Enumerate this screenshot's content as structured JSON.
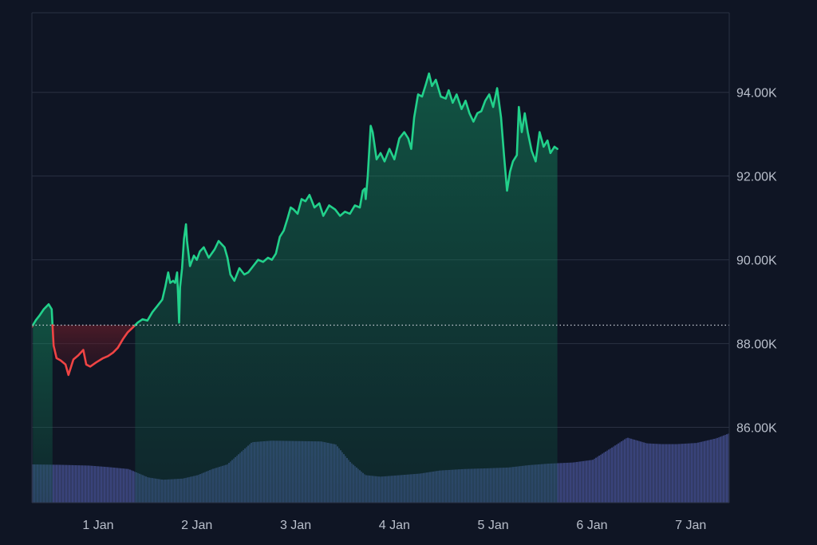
{
  "chart_data": {
    "type": "area",
    "baseline": 88440,
    "ylim": [
      84200,
      95900
    ],
    "y_ticks": [
      {
        "value": 94000,
        "label": "94.00K"
      },
      {
        "value": 92000,
        "label": "92.00K"
      },
      {
        "value": 90000,
        "label": "90.00K"
      },
      {
        "value": 88000,
        "label": "88.00K"
      },
      {
        "value": 86000,
        "label": "86.00K"
      }
    ],
    "x_ticks": [
      {
        "day": 1,
        "label": "1 Jan"
      },
      {
        "day": 2,
        "label": "2 Jan"
      },
      {
        "day": 3,
        "label": "3 Jan"
      },
      {
        "day": 4,
        "label": "4 Jan"
      },
      {
        "day": 5,
        "label": "5 Jan"
      },
      {
        "day": 6,
        "label": "6 Jan"
      },
      {
        "day": 7,
        "label": "7 Jan"
      }
    ],
    "xlim": [
      0.33,
      7.39
    ],
    "price_series": [
      [
        0.33,
        88400
      ],
      [
        0.37,
        88560
      ],
      [
        0.41,
        88680
      ],
      [
        0.45,
        88820
      ],
      [
        0.5,
        88940
      ],
      [
        0.53,
        88820
      ],
      [
        0.55,
        87950
      ],
      [
        0.58,
        87650
      ],
      [
        0.62,
        87600
      ],
      [
        0.67,
        87500
      ],
      [
        0.7,
        87250
      ],
      [
        0.75,
        87620
      ],
      [
        0.8,
        87720
      ],
      [
        0.85,
        87850
      ],
      [
        0.88,
        87500
      ],
      [
        0.92,
        87450
      ],
      [
        0.98,
        87550
      ],
      [
        1.05,
        87650
      ],
      [
        1.1,
        87700
      ],
      [
        1.15,
        87780
      ],
      [
        1.2,
        87900
      ],
      [
        1.25,
        88100
      ],
      [
        1.3,
        88270
      ],
      [
        1.35,
        88380
      ],
      [
        1.4,
        88500
      ],
      [
        1.45,
        88580
      ],
      [
        1.5,
        88550
      ],
      [
        1.55,
        88750
      ],
      [
        1.6,
        88900
      ],
      [
        1.65,
        89050
      ],
      [
        1.68,
        89350
      ],
      [
        1.71,
        89700
      ],
      [
        1.73,
        89450
      ],
      [
        1.76,
        89500
      ],
      [
        1.78,
        89450
      ],
      [
        1.8,
        89700
      ],
      [
        1.81,
        89150
      ],
      [
        1.82,
        88500
      ],
      [
        1.83,
        89350
      ],
      [
        1.85,
        89800
      ],
      [
        1.87,
        90500
      ],
      [
        1.89,
        90850
      ],
      [
        1.9,
        90450
      ],
      [
        1.93,
        89850
      ],
      [
        1.97,
        90100
      ],
      [
        2.0,
        90000
      ],
      [
        2.03,
        90200
      ],
      [
        2.07,
        90300
      ],
      [
        2.12,
        90050
      ],
      [
        2.18,
        90250
      ],
      [
        2.22,
        90450
      ],
      [
        2.28,
        90300
      ],
      [
        2.31,
        90050
      ],
      [
        2.34,
        89650
      ],
      [
        2.38,
        89500
      ],
      [
        2.43,
        89800
      ],
      [
        2.48,
        89650
      ],
      [
        2.52,
        89700
      ],
      [
        2.57,
        89850
      ],
      [
        2.62,
        90000
      ],
      [
        2.67,
        89950
      ],
      [
        2.72,
        90050
      ],
      [
        2.76,
        90000
      ],
      [
        2.8,
        90150
      ],
      [
        2.84,
        90550
      ],
      [
        2.88,
        90700
      ],
      [
        2.92,
        91000
      ],
      [
        2.95,
        91250
      ],
      [
        2.98,
        91200
      ],
      [
        3.02,
        91100
      ],
      [
        3.06,
        91450
      ],
      [
        3.1,
        91400
      ],
      [
        3.14,
        91550
      ],
      [
        3.19,
        91250
      ],
      [
        3.24,
        91350
      ],
      [
        3.28,
        91050
      ],
      [
        3.34,
        91300
      ],
      [
        3.4,
        91200
      ],
      [
        3.45,
        91050
      ],
      [
        3.5,
        91150
      ],
      [
        3.55,
        91100
      ],
      [
        3.6,
        91300
      ],
      [
        3.65,
        91250
      ],
      [
        3.68,
        91650
      ],
      [
        3.7,
        91700
      ],
      [
        3.71,
        91450
      ],
      [
        3.73,
        92000
      ],
      [
        3.76,
        93200
      ],
      [
        3.78,
        93050
      ],
      [
        3.82,
        92400
      ],
      [
        3.86,
        92550
      ],
      [
        3.9,
        92350
      ],
      [
        3.95,
        92650
      ],
      [
        4.0,
        92400
      ],
      [
        4.05,
        92900
      ],
      [
        4.1,
        93050
      ],
      [
        4.14,
        92900
      ],
      [
        4.17,
        92650
      ],
      [
        4.2,
        93400
      ],
      [
        4.24,
        93950
      ],
      [
        4.28,
        93900
      ],
      [
        4.32,
        94200
      ],
      [
        4.35,
        94450
      ],
      [
        4.38,
        94150
      ],
      [
        4.42,
        94300
      ],
      [
        4.47,
        93900
      ],
      [
        4.52,
        93850
      ],
      [
        4.55,
        94050
      ],
      [
        4.59,
        93750
      ],
      [
        4.63,
        93950
      ],
      [
        4.68,
        93600
      ],
      [
        4.72,
        93800
      ],
      [
        4.76,
        93500
      ],
      [
        4.8,
        93300
      ],
      [
        4.84,
        93500
      ],
      [
        4.88,
        93550
      ],
      [
        4.92,
        93800
      ],
      [
        4.96,
        93950
      ],
      [
        5.0,
        93650
      ],
      [
        5.04,
        94100
      ],
      [
        5.08,
        93400
      ],
      [
        5.11,
        92500
      ],
      [
        5.14,
        91650
      ],
      [
        5.17,
        92100
      ],
      [
        5.2,
        92350
      ],
      [
        5.24,
        92500
      ],
      [
        5.26,
        93650
      ],
      [
        5.29,
        93050
      ],
      [
        5.32,
        93500
      ],
      [
        5.35,
        93050
      ],
      [
        5.39,
        92600
      ],
      [
        5.43,
        92350
      ],
      [
        5.47,
        93050
      ],
      [
        5.51,
        92700
      ],
      [
        5.55,
        92850
      ],
      [
        5.58,
        92550
      ],
      [
        5.62,
        92700
      ],
      [
        5.65,
        92650
      ]
    ],
    "volume_series": [
      [
        0.33,
        1.0
      ],
      [
        0.6,
        0.99
      ],
      [
        0.9,
        0.97
      ],
      [
        1.1,
        0.93
      ],
      [
        1.3,
        0.88
      ],
      [
        1.5,
        0.66
      ],
      [
        1.65,
        0.6
      ],
      [
        1.85,
        0.63
      ],
      [
        2.0,
        0.72
      ],
      [
        2.15,
        0.88
      ],
      [
        2.3,
        1.0
      ],
      [
        2.55,
        1.58
      ],
      [
        2.75,
        1.62
      ],
      [
        3.0,
        1.61
      ],
      [
        3.25,
        1.6
      ],
      [
        3.4,
        1.52
      ],
      [
        3.55,
        1.05
      ],
      [
        3.7,
        0.72
      ],
      [
        3.85,
        0.68
      ],
      [
        4.05,
        0.72
      ],
      [
        4.25,
        0.76
      ],
      [
        4.45,
        0.84
      ],
      [
        4.7,
        0.88
      ],
      [
        4.95,
        0.9
      ],
      [
        5.15,
        0.92
      ],
      [
        5.35,
        0.98
      ],
      [
        5.55,
        1.02
      ],
      [
        5.8,
        1.05
      ],
      [
        6.0,
        1.12
      ],
      [
        6.2,
        1.45
      ],
      [
        6.35,
        1.7
      ],
      [
        6.55,
        1.55
      ],
      [
        6.7,
        1.53
      ],
      [
        6.85,
        1.53
      ],
      [
        7.05,
        1.56
      ],
      [
        7.25,
        1.68
      ],
      [
        7.39,
        1.82
      ]
    ],
    "up_color": "#22d18b",
    "down_color": "#ef4444",
    "volume_color": "#353f6b",
    "grid": true
  }
}
